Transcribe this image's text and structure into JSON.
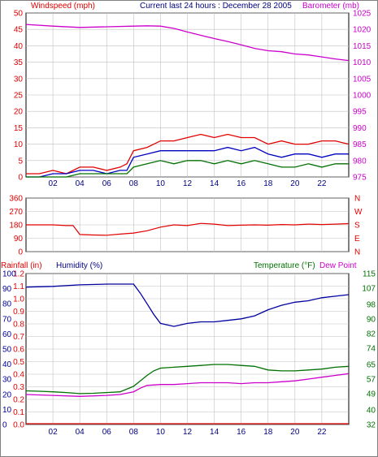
{
  "header": {
    "windspeed_label": "Windspeed (mph)",
    "title": "Current last 24 hours : December 28 2005",
    "barometer_label": "Barometer (mb)"
  },
  "bottom_header": {
    "rainfall_label": "Rainfall (in)",
    "humidity_label": "Humidity (%)",
    "temperature_label": "Temperature (°F)",
    "dewpoint_label": "Dew Point"
  },
  "colors": {
    "wind_gust": "#e00000",
    "wind_avg": "#0000c0",
    "wind_low": "#007000",
    "barometer": "#cc00cc",
    "direction": "#e00000",
    "humidity": "#0000a0",
    "temperature": "#007000",
    "dewpoint": "#cc00cc",
    "rainfall": "#e00000",
    "grid": "#c0c0c0"
  },
  "chart_data": [
    {
      "type": "line",
      "panel": "wind",
      "x_ticks": [
        "02",
        "04",
        "06",
        "08",
        "10",
        "12",
        "14",
        "16",
        "18",
        "20",
        "22"
      ],
      "x_range": [
        0,
        24
      ],
      "left_axis": {
        "label": "Windspeed (mph)",
        "ticks": [
          0,
          5,
          10,
          15,
          20,
          25,
          30,
          35,
          40,
          45,
          50
        ],
        "ylim": [
          0,
          50
        ]
      },
      "right_axis": {
        "label": "Barometer (mb)",
        "ticks": [
          975,
          980,
          985,
          990,
          995,
          1000,
          1005,
          1010,
          1015,
          1020,
          1025
        ],
        "ylim": [
          975,
          1025
        ]
      },
      "grid": true,
      "series": [
        {
          "axis": "right",
          "x": [
            0,
            2,
            4,
            6,
            8,
            9,
            10,
            11,
            12,
            13,
            14,
            15,
            16,
            17,
            18,
            19,
            20,
            21,
            22,
            23,
            24
          ],
          "y": [
            1021.5,
            1021,
            1020.6,
            1020.8,
            1021,
            1021.1,
            1021,
            1020.3,
            1019.2,
            1018.2,
            1017.2,
            1016.3,
            1015.3,
            1014.2,
            1013.5,
            1013.2,
            1012.5,
            1012.2,
            1011.6,
            1011.0,
            1010.5
          ]
        },
        {
          "axis": "left",
          "x": [
            0,
            1,
            2,
            3,
            4,
            5,
            6,
            7,
            7.5,
            8,
            9,
            10,
            11,
            12,
            13,
            14,
            15,
            16,
            17,
            18,
            19,
            20,
            21,
            22,
            23,
            24
          ],
          "y": [
            1,
            1,
            2,
            1,
            3,
            3,
            2,
            3,
            4,
            8,
            9,
            11,
            11,
            12,
            13,
            12,
            13,
            12,
            12,
            10,
            11,
            10,
            10,
            11,
            11,
            10
          ]
        },
        {
          "axis": "left",
          "x": [
            0,
            1,
            2,
            3,
            4,
            5,
            6,
            7,
            7.5,
            8,
            9,
            10,
            11,
            12,
            13,
            14,
            15,
            16,
            17,
            18,
            19,
            20,
            21,
            22,
            23,
            24
          ],
          "y": [
            0,
            0,
            1,
            1,
            2,
            2,
            1,
            2,
            2,
            6,
            7,
            8,
            8,
            8,
            8,
            8,
            9,
            8,
            9,
            7,
            6,
            7,
            7,
            6,
            7,
            7
          ]
        },
        {
          "axis": "left",
          "x": [
            0,
            1,
            2,
            3,
            4,
            5,
            6,
            7,
            7.5,
            8,
            9,
            10,
            11,
            12,
            13,
            14,
            15,
            16,
            17,
            18,
            19,
            20,
            21,
            22,
            23,
            24
          ],
          "y": [
            0,
            0,
            0,
            0,
            1,
            1,
            1,
            1,
            1,
            3,
            4,
            5,
            4,
            5,
            5,
            4,
            5,
            4,
            5,
            4,
            3,
            3,
            4,
            3,
            4,
            4
          ]
        }
      ]
    },
    {
      "type": "line",
      "panel": "direction",
      "x_range": [
        0,
        24
      ],
      "left_axis": {
        "ticks": [
          0,
          90,
          180,
          270,
          360
        ],
        "ylim": [
          0,
          360
        ]
      },
      "right_axis": {
        "ticks": [
          "N",
          "E",
          "S",
          "W",
          "N"
        ]
      },
      "grid": true,
      "series": [
        {
          "x": [
            0,
            1,
            2,
            3,
            3.5,
            4,
            5,
            6,
            7,
            8,
            9,
            10,
            11,
            12,
            13,
            14,
            15,
            16,
            17,
            18,
            19,
            20,
            21,
            22,
            23,
            24
          ],
          "y": [
            180,
            180,
            180,
            175,
            175,
            115,
            112,
            110,
            118,
            125,
            140,
            165,
            180,
            175,
            190,
            185,
            175,
            178,
            180,
            178,
            182,
            180,
            185,
            182,
            185,
            188
          ]
        }
      ]
    },
    {
      "type": "line",
      "panel": "humidity-temperature",
      "x_ticks": [
        "02",
        "04",
        "06",
        "08",
        "10",
        "12",
        "14",
        "16",
        "18",
        "20",
        "22"
      ],
      "x_range": [
        0,
        24
      ],
      "rainfall_axis": {
        "label": "Rainfall (in)",
        "ticks": [
          0.0,
          0.1,
          0.2,
          0.3,
          0.4,
          0.5,
          0.6,
          0.7,
          0.8,
          0.9,
          1.0,
          1.1,
          1.2
        ],
        "ylim": [
          0,
          1.2
        ]
      },
      "humidity_axis": {
        "label": "Humidity (%)",
        "ticks": [
          0,
          10,
          20,
          30,
          40,
          50,
          60,
          70,
          80,
          90,
          100
        ],
        "ylim": [
          0,
          100
        ]
      },
      "temperature_axis": {
        "label": "Temperature (°F)",
        "ticks": [
          32,
          40,
          49,
          57,
          65,
          74,
          82,
          90,
          98,
          107,
          115
        ],
        "ylim": [
          32,
          115
        ]
      },
      "grid": true,
      "series": [
        {
          "axis": "humidity",
          "x": [
            0,
            2,
            4,
            6,
            7,
            8,
            8.5,
            9,
            9.5,
            10,
            11,
            12,
            13,
            14,
            15,
            16,
            17,
            18,
            19,
            20,
            21,
            22,
            23,
            24
          ],
          "y": [
            91,
            91.5,
            92.5,
            93,
            93,
            93,
            87,
            80,
            73,
            67,
            65,
            67,
            68,
            68,
            69,
            70,
            72,
            76,
            79,
            81,
            82,
            84,
            85,
            86
          ]
        },
        {
          "axis": "temperature",
          "x": [
            0,
            1,
            2,
            3,
            4,
            5,
            6,
            7,
            8,
            8.5,
            9,
            9.5,
            10,
            11,
            12,
            13,
            14,
            15,
            16,
            17,
            18,
            19,
            20,
            21,
            22,
            23,
            24
          ],
          "y": [
            50.5,
            50.3,
            50,
            49.6,
            49,
            49.2,
            49.6,
            50,
            53,
            56,
            59,
            61.5,
            63,
            63.5,
            64,
            64.5,
            65,
            65,
            64.5,
            64,
            62,
            61.5,
            61.5,
            62,
            62.5,
            63.5,
            64
          ]
        },
        {
          "axis": "temperature",
          "x": [
            0,
            2,
            4,
            6,
            7,
            8,
            8.5,
            9,
            10,
            11,
            12,
            13,
            14,
            15,
            16,
            17,
            18,
            19,
            20,
            21,
            22,
            23,
            24
          ],
          "y": [
            48.5,
            48,
            47.5,
            48,
            48.5,
            50,
            52,
            53.5,
            54,
            54,
            54.5,
            55,
            55,
            55,
            54.5,
            55,
            55,
            55.5,
            56,
            57,
            58,
            59,
            60
          ]
        },
        {
          "axis": "rainfall",
          "x": [
            0,
            24
          ],
          "y": [
            0,
            0
          ]
        }
      ]
    }
  ]
}
